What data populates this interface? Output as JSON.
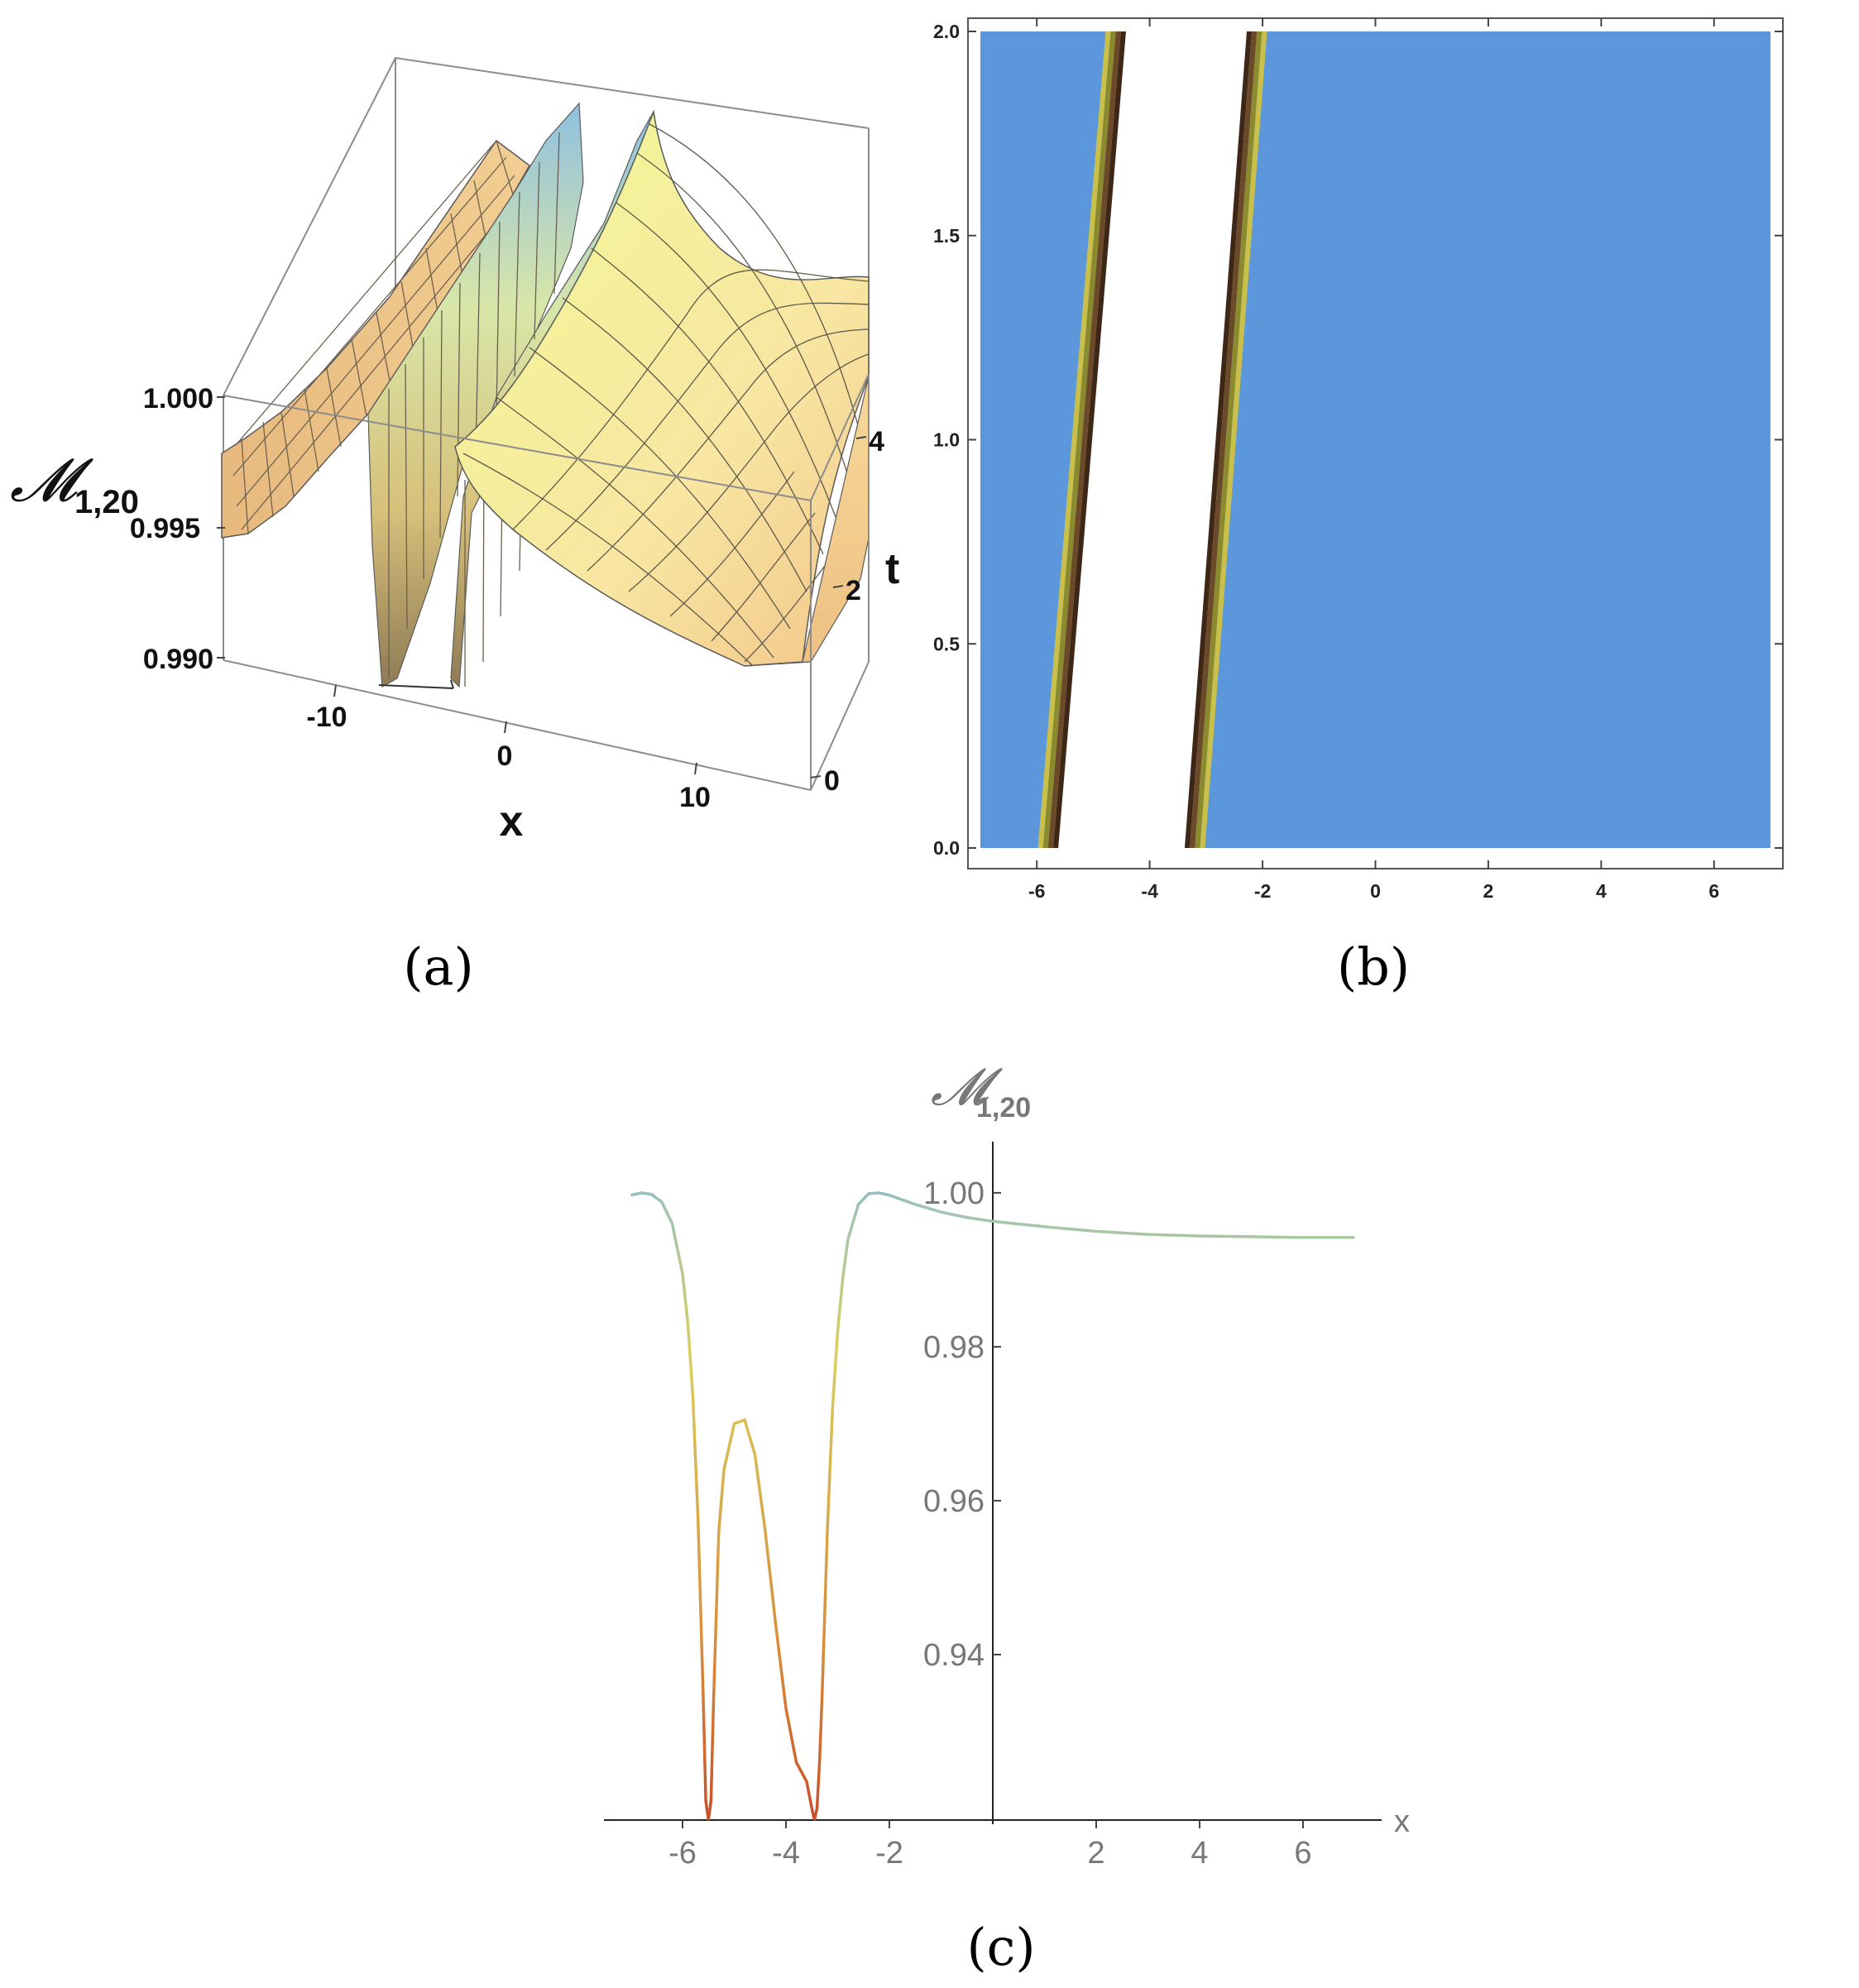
{
  "figure": {
    "sublabels": {
      "a": "(a)",
      "b": "(b)",
      "c": "(c)"
    }
  },
  "chart_data": [
    {
      "id": "a",
      "type": "surface3d",
      "title": "",
      "xlabel": "x",
      "ylabel": "t",
      "zlabel_main": "𝓜",
      "zlabel_sub": "1,20",
      "x_ticks": [
        "-10",
        "0",
        "10"
      ],
      "t_ticks": [
        "0",
        "2",
        "4"
      ],
      "z_ticks": [
        "1.000",
        "0.995",
        "0.990"
      ],
      "xlim": [
        -15,
        15
      ],
      "tlim": [
        0,
        5
      ],
      "zlim": [
        0.99,
        1.0
      ],
      "dips_x": [
        -5.5,
        -3.3
      ]
    },
    {
      "id": "b",
      "type": "contour",
      "xlabel": "",
      "ylabel": "",
      "xlim": [
        -7,
        7
      ],
      "ylim": [
        0,
        2
      ],
      "x_ticks": [
        "-6",
        "-4",
        "-2",
        "0",
        "2",
        "4",
        "6"
      ],
      "y_ticks": [
        "0.0",
        "0.5",
        "1.0",
        "1.5",
        "2.0"
      ],
      "background_color": "#5B97DA",
      "gap_color": "#FFFFFF",
      "band_colors": [
        "#C8C04A",
        "#8C8A2E",
        "#6B4A2A",
        "#3E2716"
      ],
      "bands": [
        {
          "x_at_t0": -5.8,
          "x_at_t2": -4.6
        },
        {
          "x_at_t0": -3.2,
          "x_at_t2": -2.1
        }
      ]
    },
    {
      "id": "c",
      "type": "line",
      "xlabel": "x",
      "ylabel_main": "𝓜",
      "ylabel_sub": "1,20",
      "xlim": [
        -7.2,
        7.2
      ],
      "ylim": [
        0.9185,
        1.0045
      ],
      "x_ticks": [
        "-6",
        "-4",
        "-2",
        "2",
        "4",
        "6"
      ],
      "y_ticks": [
        "0.94",
        "0.96",
        "0.98",
        "1.00"
      ],
      "series": [
        {
          "name": "M1,20",
          "x": [
            -7.0,
            -6.8,
            -6.6,
            -6.4,
            -6.2,
            -6.0,
            -5.9,
            -5.8,
            -5.7,
            -5.6,
            -5.55,
            -5.5,
            -5.45,
            -5.4,
            -5.3,
            -5.2,
            -5.0,
            -4.8,
            -4.6,
            -4.4,
            -4.2,
            -4.0,
            -3.8,
            -3.6,
            -3.5,
            -3.45,
            -3.4,
            -3.35,
            -3.3,
            -3.2,
            -3.1,
            -3.0,
            -2.9,
            -2.8,
            -2.6,
            -2.4,
            -2.2,
            -2.0,
            -1.5,
            -1.0,
            -0.5,
            0.0,
            1.0,
            2.0,
            3.0,
            4.0,
            5.0,
            6.0,
            7.0
          ],
          "y": [
            0.9997,
            1.0,
            0.9998,
            0.9988,
            0.996,
            0.9895,
            0.9832,
            0.9735,
            0.9573,
            0.9345,
            0.921,
            0.9185,
            0.921,
            0.934,
            0.956,
            0.964,
            0.97,
            0.9705,
            0.966,
            0.956,
            0.944,
            0.933,
            0.926,
            0.9235,
            0.92,
            0.9185,
            0.92,
            0.926,
            0.935,
            0.956,
            0.972,
            0.982,
            0.989,
            0.994,
            0.9985,
            0.9999,
            1.0,
            0.9997,
            0.9985,
            0.9975,
            0.9968,
            0.9963,
            0.9956,
            0.995,
            0.9946,
            0.9944,
            0.9943,
            0.9942,
            0.9942
          ]
        }
      ]
    }
  ]
}
